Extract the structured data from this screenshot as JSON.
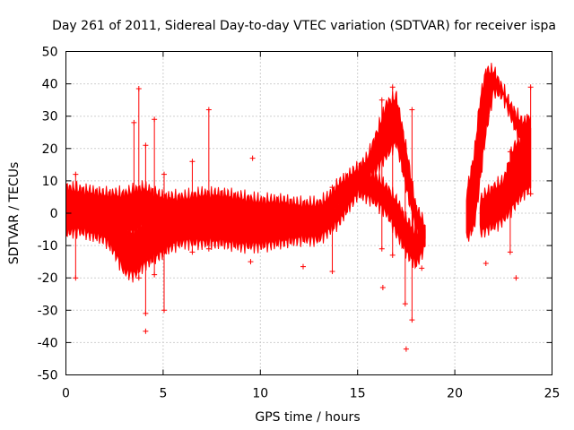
{
  "chart_data": {
    "type": "scatter",
    "title": "Day 261 of 2011, Sidereal Day-to-day VTEC variation (SDTVAR) for receiver ispa",
    "xlabel": "GPS time / hours",
    "ylabel": "SDTVAR / TECUs",
    "xlim": [
      0,
      25
    ],
    "ylim": [
      -50,
      50
    ],
    "xticks": [
      "0",
      "5",
      "10",
      "15",
      "20",
      "25"
    ],
    "yticks": [
      "50",
      "40",
      "30",
      "20",
      "10",
      "0",
      "-10",
      "-20",
      "-30",
      "-40",
      "-50"
    ],
    "grid": true,
    "marker": "+",
    "color": "#ff0000",
    "bands": [
      {
        "name": "band-a",
        "x": [
          0,
          1,
          2,
          3,
          3.5,
          4,
          5,
          6,
          7,
          8,
          9,
          10,
          11,
          12,
          13,
          13.5,
          14,
          15,
          15.5,
          16,
          16.5,
          17,
          17.5,
          18,
          18.5
        ],
        "lo": [
          -6,
          -5,
          -5,
          -6,
          -6,
          -4,
          -3,
          -4,
          -3,
          -4,
          -5,
          -5,
          -6,
          -6,
          -6,
          -3,
          2,
          7,
          10,
          14,
          18,
          22,
          8,
          -5,
          -8
        ],
        "hi": [
          8,
          7,
          6,
          6,
          7,
          8,
          5,
          5,
          6,
          6,
          5,
          4,
          4,
          3,
          3,
          5,
          9,
          14,
          17,
          25,
          34,
          36,
          20,
          2,
          -4
        ]
      },
      {
        "name": "band-b",
        "x": [
          0,
          1,
          2,
          2.5,
          3,
          3.5,
          4,
          4.5,
          5,
          5.5,
          6,
          7,
          8,
          9,
          10,
          11,
          12,
          13,
          14,
          15,
          15.5,
          16,
          16.5,
          17,
          17.5,
          18,
          18.5
        ],
        "lo": [
          -4,
          -6,
          -8,
          -12,
          -18,
          -19,
          -16,
          -14,
          -12,
          -10,
          -9,
          -9,
          -9,
          -10,
          -10,
          -9,
          -8,
          -8,
          -3,
          6,
          5,
          3,
          0,
          -6,
          -12,
          -16,
          -10
        ],
        "hi": [
          6,
          4,
          2,
          0,
          -4,
          -6,
          -2,
          0,
          2,
          3,
          3,
          2,
          1,
          0,
          0,
          -1,
          -2,
          -2,
          3,
          12,
          13,
          11,
          8,
          4,
          -2,
          -6,
          -5
        ]
      },
      {
        "name": "band-c",
        "x": [
          20.6,
          21,
          21.3,
          21.6,
          22,
          22.5,
          23,
          23.5,
          23.9
        ],
        "lo": [
          -8,
          -4,
          10,
          25,
          38,
          36,
          28,
          20,
          10
        ],
        "hi": [
          6,
          18,
          35,
          44,
          44,
          38,
          32,
          28,
          30
        ]
      },
      {
        "name": "band-d",
        "x": [
          21.3,
          21.6,
          22,
          22.5,
          23,
          23.5,
          23.9
        ],
        "lo": [
          -6,
          -5,
          -4,
          -2,
          2,
          6,
          8
        ],
        "hi": [
          4,
          6,
          8,
          10,
          20,
          24,
          26
        ]
      }
    ],
    "spikes": [
      {
        "x": 0.5,
        "lo": -20,
        "hi": 12
      },
      {
        "x": 3.5,
        "lo": -16,
        "hi": 28
      },
      {
        "x": 3.75,
        "lo": -20,
        "hi": 38.5
      },
      {
        "x": 4.1,
        "lo": -31,
        "hi": 21
      },
      {
        "x": 4.55,
        "lo": -19,
        "hi": 29
      },
      {
        "x": 5.05,
        "lo": -30,
        "hi": 12
      },
      {
        "x": 6.5,
        "lo": -12,
        "hi": 16
      },
      {
        "x": 7.35,
        "lo": -11,
        "hi": 32
      },
      {
        "x": 13.7,
        "lo": -18,
        "hi": 8
      },
      {
        "x": 16.25,
        "lo": -11,
        "hi": 35
      },
      {
        "x": 16.8,
        "lo": -13,
        "hi": 39
      },
      {
        "x": 17.45,
        "lo": -28,
        "hi": 12
      },
      {
        "x": 17.8,
        "lo": -33,
        "hi": 32
      },
      {
        "x": 22.85,
        "lo": -12,
        "hi": 19
      },
      {
        "x": 23.9,
        "lo": 6,
        "hi": 39
      }
    ],
    "outliers": [
      {
        "x": 4.1,
        "y": -36.5
      },
      {
        "x": 9.5,
        "y": -15
      },
      {
        "x": 9.6,
        "y": 17
      },
      {
        "x": 12.2,
        "y": -16.5
      },
      {
        "x": 16.3,
        "y": -23
      },
      {
        "x": 17.5,
        "y": -42
      },
      {
        "x": 18.3,
        "y": -17
      },
      {
        "x": 21.6,
        "y": -15.5
      },
      {
        "x": 23.15,
        "y": -20
      }
    ]
  }
}
